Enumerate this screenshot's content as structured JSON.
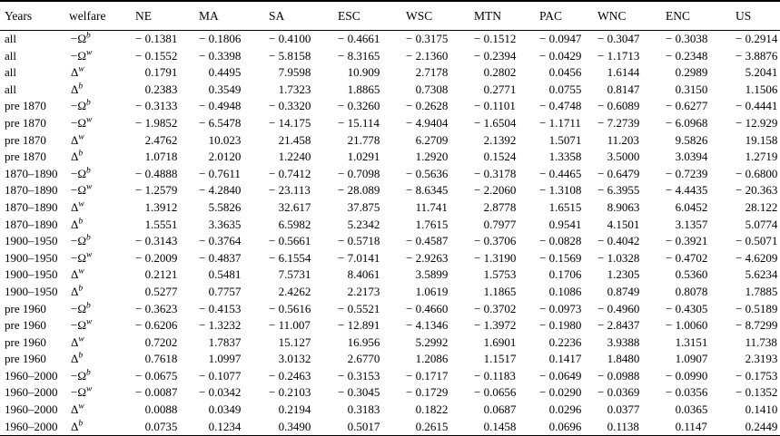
{
  "table": {
    "headers": [
      "Years",
      "welfare",
      "NE",
      "MA",
      "SA",
      "ESC",
      "WSC",
      "MTN",
      "PAC",
      "WNC",
      "ENC",
      "US"
    ],
    "rows": [
      {
        "years": "all",
        "welfare_base": "−Ω",
        "welfare_sup": "b",
        "values": [
          "− 0.1381",
          "− 0.1806",
          "− 0.4100",
          "− 0.4661",
          "− 0.3175",
          "− 0.1512",
          "− 0.0947",
          "− 0.3047",
          "− 0.3038",
          "− 0.2914"
        ]
      },
      {
        "years": "all",
        "welfare_base": "−Ω",
        "welfare_sup": "w",
        "values": [
          "− 0.1552",
          "− 0.3398",
          "− 5.8158",
          "− 8.3165",
          "− 2.1360",
          "− 0.2394",
          "− 0.0429",
          "− 1.1713",
          "− 0.2348",
          "− 3.8876"
        ]
      },
      {
        "years": "all",
        "welfare_base": "Δ",
        "welfare_sup": "w",
        "values": [
          "0.1791",
          "0.4495",
          "7.9598",
          "10.909",
          "2.7178",
          "0.2802",
          "0.0456",
          "1.6144",
          "0.2989",
          "5.2041"
        ]
      },
      {
        "years": "all",
        "welfare_base": "Δ",
        "welfare_sup": "b",
        "values": [
          "0.2383",
          "0.3549",
          "1.7323",
          "1.8865",
          "0.7308",
          "0.2771",
          "0.0755",
          "0.8147",
          "0.3150",
          "1.1506"
        ]
      },
      {
        "years": "pre 1870",
        "welfare_base": "−Ω",
        "welfare_sup": "b",
        "values": [
          "− 0.3133",
          "− 0.4948",
          "− 0.3320",
          "− 0.3260",
          "− 0.2628",
          "− 0.1101",
          "− 0.4748",
          "− 0.6089",
          "− 0.6277",
          "− 0.4441"
        ]
      },
      {
        "years": "pre 1870",
        "welfare_base": "−Ω",
        "welfare_sup": "w",
        "values": [
          "− 1.9852",
          "− 6.5478",
          "− 14.175",
          "− 15.114",
          "− 4.9404",
          "− 1.6504",
          "− 1.1711",
          "− 7.2739",
          "− 6.0968",
          "− 12.929"
        ]
      },
      {
        "years": "pre 1870",
        "welfare_base": "Δ",
        "welfare_sup": "w",
        "values": [
          "2.4762",
          "10.023",
          "21.458",
          "21.778",
          "6.2709",
          "2.1392",
          "1.5071",
          "11.203",
          "9.5826",
          "19.158"
        ]
      },
      {
        "years": "pre 1870",
        "welfare_base": "Δ",
        "welfare_sup": "b",
        "values": [
          "1.0718",
          "2.0120",
          "1.2240",
          "1.0291",
          "1.2920",
          "0.1524",
          "1.3358",
          "3.5000",
          "3.0394",
          "1.2719"
        ]
      },
      {
        "years": "1870–1890",
        "welfare_base": "−Ω",
        "welfare_sup": "b",
        "values": [
          "− 0.4888",
          "− 0.7611",
          "− 0.7412",
          "− 0.7098",
          "− 0.5636",
          "− 0.3178",
          "− 0.4465",
          "− 0.6479",
          "− 0.7239",
          "− 0.6800"
        ]
      },
      {
        "years": "1870–1890",
        "welfare_base": "−Ω",
        "welfare_sup": "w",
        "values": [
          "− 1.2579",
          "− 4.2840",
          "− 23.113",
          "− 28.089",
          "− 8.6345",
          "− 2.2060",
          "− 1.3108",
          "− 6.3955",
          "− 4.4435",
          "− 20.363"
        ]
      },
      {
        "years": "1870–1890",
        "welfare_base": "Δ",
        "welfare_sup": "w",
        "values": [
          "1.3912",
          "5.5826",
          "32.617",
          "37.875",
          "11.741",
          "2.8778",
          "1.6515",
          "8.9063",
          "6.0452",
          "28.122"
        ]
      },
      {
        "years": "1870–1890",
        "welfare_base": "Δ",
        "welfare_sup": "b",
        "values": [
          "1.5551",
          "3.3635",
          "6.5982",
          "5.2342",
          "1.7615",
          "0.7977",
          "0.9541",
          "4.1501",
          "3.1357",
          "5.0774"
        ]
      },
      {
        "years": "1900–1950",
        "welfare_base": "−Ω",
        "welfare_sup": "b",
        "values": [
          "− 0.3143",
          "− 0.3764",
          "− 0.5661",
          "− 0.5718",
          "− 0.4587",
          "− 0.3706",
          "− 0.0828",
          "− 0.4042",
          "− 0.3921",
          "− 0.5071"
        ]
      },
      {
        "years": "1900–1950",
        "welfare_base": "−Ω",
        "welfare_sup": "w",
        "values": [
          "− 0.2009",
          "− 0.4837",
          "− 6.1554",
          "− 7.0141",
          "− 2.9263",
          "− 1.3190",
          "− 0.1569",
          "− 1.0328",
          "− 0.4702",
          "− 4.6209"
        ]
      },
      {
        "years": "1900–1950",
        "welfare_base": "Δ",
        "welfare_sup": "w",
        "values": [
          "0.2121",
          "0.5481",
          "7.5731",
          "8.4061",
          "3.5899",
          "1.5753",
          "0.1706",
          "1.2305",
          "0.5360",
          "5.6234"
        ]
      },
      {
        "years": "1900–1950",
        "welfare_base": "Δ",
        "welfare_sup": "b",
        "values": [
          "0.5277",
          "0.7757",
          "2.4262",
          "2.2173",
          "1.0619",
          "1.1865",
          "0.1086",
          "0.8749",
          "0.8078",
          "1.7885"
        ]
      },
      {
        "years": "pre 1960",
        "welfare_base": "−Ω",
        "welfare_sup": "b",
        "values": [
          "− 0.3623",
          "− 0.4153",
          "− 0.5616",
          "− 0.5521",
          "− 0.4660",
          "− 0.3702",
          "− 0.0973",
          "− 0.4960",
          "− 0.4305",
          "− 0.5189"
        ]
      },
      {
        "years": "pre 1960",
        "welfare_base": "−Ω",
        "welfare_sup": "w",
        "values": [
          "− 0.6206",
          "− 1.3232",
          "− 11.007",
          "− 12.891",
          "− 4.1346",
          "− 1.3972",
          "− 0.1980",
          "− 2.8437",
          "− 1.0060",
          "− 8.7299"
        ]
      },
      {
        "years": "pre 1960",
        "welfare_base": "Δ",
        "welfare_sup": "w",
        "values": [
          "0.7202",
          "1.7837",
          "15.127",
          "16.956",
          "5.2992",
          "1.6901",
          "0.2236",
          "3.9388",
          "1.3151",
          "11.738"
        ]
      },
      {
        "years": "pre 1960",
        "welfare_base": "Δ",
        "welfare_sup": "b",
        "values": [
          "0.7618",
          "1.0997",
          "3.0132",
          "2.6770",
          "1.2086",
          "1.1517",
          "0.1417",
          "1.8480",
          "1.0907",
          "2.3193"
        ]
      },
      {
        "years": "1960–2000",
        "welfare_base": "−Ω",
        "welfare_sup": "b",
        "values": [
          "− 0.0675",
          "− 0.1077",
          "− 0.2463",
          "− 0.3153",
          "− 0.1717",
          "− 0.1183",
          "− 0.0649",
          "− 0.0988",
          "− 0.0990",
          "− 0.1753"
        ]
      },
      {
        "years": "1960–2000",
        "welfare_base": "−Ω",
        "welfare_sup": "w",
        "values": [
          "− 0.0087",
          "− 0.0342",
          "− 0.2103",
          "− 0.3045",
          "− 0.1729",
          "− 0.0656",
          "− 0.0290",
          "− 0.0369",
          "− 0.0356",
          "− 0.1352"
        ]
      },
      {
        "years": "1960–2000",
        "welfare_base": "Δ",
        "welfare_sup": "w",
        "values": [
          "0.0088",
          "0.0349",
          "0.2194",
          "0.3183",
          "0.1822",
          "0.0687",
          "0.0296",
          "0.0377",
          "0.0365",
          "0.1410"
        ]
      },
      {
        "years": "1960–2000",
        "welfare_base": "Δ",
        "welfare_sup": "b",
        "values": [
          "0.0735",
          "0.1234",
          "0.3490",
          "0.5017",
          "0.2615",
          "0.1458",
          "0.0696",
          "0.1138",
          "0.1147",
          "0.2449"
        ]
      }
    ]
  }
}
